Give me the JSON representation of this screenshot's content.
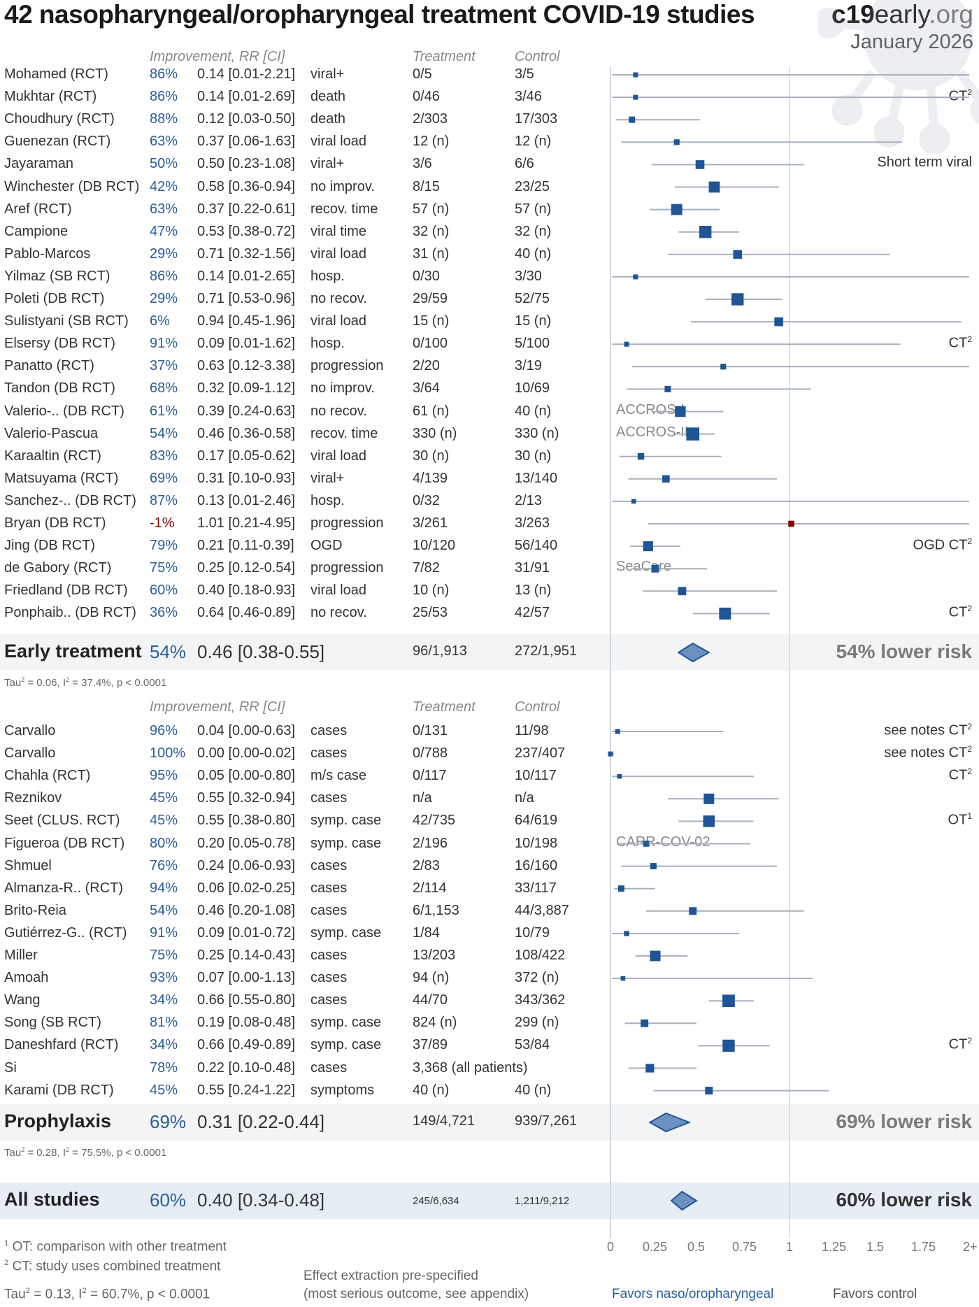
{
  "header": {
    "title": "42 nasopharyngeal/oropharyngeal treatment COVID-19 studies",
    "brand_bold": "c19",
    "brand_mid": "early",
    "brand_tld": ".org",
    "date": "January 2026"
  },
  "columns": {
    "improvement": "Improvement, RR [CI]",
    "treatment": "Treatment",
    "control": "Control"
  },
  "colors": {
    "accent": "#2a5d9a",
    "negative": "#8b0000",
    "square": "#1f5596",
    "diamond_fill": "#6a91c0",
    "ci_line": "#a8b0bb"
  },
  "chart_data": {
    "type": "forest",
    "title": "42 nasopharyngeal/oropharyngeal treatment COVID-19 studies",
    "xlabel_left": "Favors naso/oropharyngeal",
    "xlabel_right": "Favors control",
    "x_ticks": [
      "0",
      "0.25",
      "0.5",
      "0.75",
      "1",
      "1.25",
      "1.5",
      "1.75",
      "2+"
    ],
    "xlim": [
      0,
      2
    ],
    "reference_line": 1,
    "groups": [
      {
        "name": "Early treatment",
        "studies": [
          {
            "name": "Mohamed (RCT)",
            "improvement": "86%",
            "rr": 0.14,
            "lo": 0.01,
            "hi": 2.21,
            "rr_text": "0.14 [0.01-2.21]",
            "outcome": "viral+",
            "treatment": "0/5",
            "control": "3/5",
            "note": "",
            "trial": "",
            "weight": 1
          },
          {
            "name": "Mukhtar (RCT)",
            "improvement": "86%",
            "rr": 0.14,
            "lo": 0.01,
            "hi": 2.69,
            "rr_text": "0.14 [0.01-2.69]",
            "outcome": "death",
            "treatment": "0/46",
            "control": "3/46",
            "note": "CT",
            "note_sup": "2",
            "trial": "",
            "weight": 1
          },
          {
            "name": "Choudhury (RCT)",
            "improvement": "88%",
            "rr": 0.12,
            "lo": 0.03,
            "hi": 0.5,
            "rr_text": "0.12 [0.03-0.50]",
            "outcome": "death",
            "treatment": "2/303",
            "control": "17/303",
            "note": "",
            "trial": "",
            "weight": 1.5
          },
          {
            "name": "Guenezan (RCT)",
            "improvement": "63%",
            "rr": 0.37,
            "lo": 0.06,
            "hi": 1.63,
            "rr_text": "0.37 [0.06-1.63]",
            "outcome": "viral load",
            "treatment": "12 (n)",
            "control": "12 (n)",
            "note": "",
            "trial": "",
            "weight": 1.3
          },
          {
            "name": "Jayaraman",
            "improvement": "50%",
            "rr": 0.5,
            "lo": 0.23,
            "hi": 1.08,
            "rr_text": "0.50 [0.23-1.08]",
            "outcome": "viral+",
            "treatment": "3/6",
            "control": "6/6",
            "note": "Short term viral",
            "trial": "",
            "weight": 2.4
          },
          {
            "name": "Winchester (DB RCT)",
            "improvement": "42%",
            "rr": 0.58,
            "lo": 0.36,
            "hi": 0.94,
            "rr_text": "0.58 [0.36-0.94]",
            "outcome": "no improv.",
            "treatment": "8/15",
            "control": "23/25",
            "note": "",
            "trial": "",
            "weight": 3.2
          },
          {
            "name": "Aref (RCT)",
            "improvement": "63%",
            "rr": 0.37,
            "lo": 0.22,
            "hi": 0.61,
            "rr_text": "0.37 [0.22-0.61]",
            "outcome": "recov. time",
            "treatment": "57 (n)",
            "control": "57 (n)",
            "note": "",
            "trial": "",
            "weight": 3.2
          },
          {
            "name": "Campione",
            "improvement": "47%",
            "rr": 0.53,
            "lo": 0.38,
            "hi": 0.72,
            "rr_text": "0.53 [0.38-0.72]",
            "outcome": "viral time",
            "treatment": "32 (n)",
            "control": "32 (n)",
            "note": "",
            "trial": "",
            "weight": 3.6
          },
          {
            "name": "Pablo-Marcos",
            "improvement": "29%",
            "rr": 0.71,
            "lo": 0.32,
            "hi": 1.56,
            "rr_text": "0.71 [0.32-1.56]",
            "outcome": "viral load",
            "treatment": "31 (n)",
            "control": "40 (n)",
            "note": "",
            "trial": "",
            "weight": 2.4
          },
          {
            "name": "Yilmaz (SB RCT)",
            "improvement": "86%",
            "rr": 0.14,
            "lo": 0.01,
            "hi": 2.65,
            "rr_text": "0.14 [0.01-2.65]",
            "outcome": "hosp.",
            "treatment": "0/30",
            "control": "3/30",
            "note": "",
            "trial": "",
            "weight": 1
          },
          {
            "name": "Poleti (DB RCT)",
            "improvement": "29%",
            "rr": 0.71,
            "lo": 0.53,
            "hi": 0.96,
            "rr_text": "0.71 [0.53-0.96]",
            "outcome": "no recov.",
            "treatment": "29/59",
            "control": "52/75",
            "note": "",
            "trial": "",
            "weight": 3.6
          },
          {
            "name": "Sulistyani (SB RCT)",
            "improvement": "6%",
            "rr": 0.94,
            "lo": 0.45,
            "hi": 1.96,
            "rr_text": "0.94 [0.45-1.96]",
            "outcome": "viral load",
            "treatment": "15 (n)",
            "control": "15 (n)",
            "note": "",
            "trial": "",
            "weight": 2.4
          },
          {
            "name": "Elsersy (DB RCT)",
            "improvement": "91%",
            "rr": 0.09,
            "lo": 0.01,
            "hi": 1.62,
            "rr_text": "0.09 [0.01-1.62]",
            "outcome": "hosp.",
            "treatment": "0/100",
            "control": "5/100",
            "note": "CT",
            "note_sup": "2",
            "trial": "",
            "weight": 1
          },
          {
            "name": "Panatto (RCT)",
            "improvement": "37%",
            "rr": 0.63,
            "lo": 0.12,
            "hi": 3.38,
            "rr_text": "0.63 [0.12-3.38]",
            "outcome": "progression",
            "treatment": "2/20",
            "control": "3/19",
            "note": "",
            "trial": "",
            "weight": 1.3
          },
          {
            "name": "Tandon (DB RCT)",
            "improvement": "68%",
            "rr": 0.32,
            "lo": 0.09,
            "hi": 1.12,
            "rr_text": "0.32 [0.09-1.12]",
            "outcome": "no improv.",
            "treatment": "3/64",
            "control": "10/69",
            "note": "",
            "trial": "",
            "weight": 1.5
          },
          {
            "name": "Valerio-.. (DB RCT)",
            "improvement": "61%",
            "rr": 0.39,
            "lo": 0.24,
            "hi": 0.63,
            "rr_text": "0.39 [0.24-0.63]",
            "outcome": "no recov.",
            "treatment": "61 (n)",
            "control": "40 (n)",
            "note": "",
            "trial": "ACCROS-I",
            "weight": 3.1
          },
          {
            "name": "Valerio-Pascua",
            "improvement": "54%",
            "rr": 0.46,
            "lo": 0.36,
            "hi": 0.58,
            "rr_text": "0.46 [0.36-0.58]",
            "outcome": "recov. time",
            "treatment": "330 (n)",
            "control": "330 (n)",
            "note": "",
            "trial": "ACCROS-II",
            "weight": 3.9
          },
          {
            "name": "Karaaltin (RCT)",
            "improvement": "83%",
            "rr": 0.17,
            "lo": 0.05,
            "hi": 0.62,
            "rr_text": "0.17 [0.05-0.62]",
            "outcome": "viral load",
            "treatment": "30 (n)",
            "control": "30 (n)",
            "note": "",
            "trial": "",
            "weight": 1.6
          },
          {
            "name": "Matsuyama (RCT)",
            "improvement": "69%",
            "rr": 0.31,
            "lo": 0.1,
            "hi": 0.93,
            "rr_text": "0.31 [0.10-0.93]",
            "outcome": "viral+",
            "treatment": "4/139",
            "control": "13/140",
            "note": "",
            "trial": "",
            "weight": 1.9
          },
          {
            "name": "Sanchez-.. (DB RCT)",
            "improvement": "87%",
            "rr": 0.13,
            "lo": 0.01,
            "hi": 2.46,
            "rr_text": "0.13 [0.01-2.46]",
            "outcome": "hosp.",
            "treatment": "0/32",
            "control": "2/13",
            "note": "",
            "trial": "",
            "weight": 0.9
          },
          {
            "name": "Bryan (DB RCT)",
            "improvement": "-1%",
            "rr": 1.01,
            "lo": 0.21,
            "hi": 4.95,
            "rr_text": "1.01 [0.21-4.95]",
            "outcome": "progression",
            "treatment": "3/261",
            "control": "3/263",
            "note": "",
            "trial": "",
            "weight": 1.4,
            "negative": true
          },
          {
            "name": "Jing (DB RCT)",
            "improvement": "79%",
            "rr": 0.21,
            "lo": 0.11,
            "hi": 0.39,
            "rr_text": "0.21 [0.11-0.39]",
            "outcome": "OGD",
            "treatment": "10/120",
            "control": "56/140",
            "note": "OGD CT",
            "note_sup": "2",
            "trial": "",
            "weight": 2.8
          },
          {
            "name": "de Gabory (RCT)",
            "improvement": "75%",
            "rr": 0.25,
            "lo": 0.12,
            "hi": 0.54,
            "rr_text": "0.25 [0.12-0.54]",
            "outcome": "progression",
            "treatment": "7/82",
            "control": "31/91",
            "note": "",
            "trial": "SeaCare",
            "weight": 2.0
          },
          {
            "name": "Friedland (DB RCT)",
            "improvement": "60%",
            "rr": 0.4,
            "lo": 0.18,
            "hi": 0.93,
            "rr_text": "0.40 [0.18-0.93]",
            "outcome": "viral load",
            "treatment": "10 (n)",
            "control": "13 (n)",
            "note": "",
            "trial": "",
            "weight": 2.2
          },
          {
            "name": "Ponphaib.. (DB RCT)",
            "improvement": "36%",
            "rr": 0.64,
            "lo": 0.46,
            "hi": 0.89,
            "rr_text": "0.64 [0.46-0.89]",
            "outcome": "no recov.",
            "treatment": "25/53",
            "control": "42/57",
            "note": "CT",
            "note_sup": "2",
            "trial": "",
            "weight": 3.5
          }
        ],
        "summary": {
          "label": "Early treatment",
          "improvement": "54%",
          "rr": 0.46,
          "lo": 0.38,
          "hi": 0.55,
          "rr_text": "0.46 [0.38-0.55]",
          "treatment": "96/1,913",
          "control": "272/1,951",
          "risk_text": "54% lower risk"
        },
        "heterogeneity": {
          "tau_prefix": "Tau",
          "tau_rest": " = 0.06, I",
          "i_rest": " = 37.4%, p < 0.0001"
        }
      },
      {
        "name": "Prophylaxis",
        "studies": [
          {
            "name": "Carvallo",
            "improvement": "96%",
            "rr": 0.04,
            "lo": 0.0,
            "hi": 0.63,
            "rr_text": "0.04 [0.00-0.63]",
            "outcome": "cases",
            "treatment": "0/131",
            "control": "11/98",
            "note": "see notes CT",
            "note_sup": "2",
            "trial": "",
            "weight": 1
          },
          {
            "name": "Carvallo",
            "improvement": "100%",
            "rr": 0.0,
            "lo": 0.0,
            "hi": 0.02,
            "rr_text": "0.00 [0.00-0.02]",
            "outcome": "cases",
            "treatment": "0/788",
            "control": "237/407",
            "note": "see notes CT",
            "note_sup": "2",
            "trial": "",
            "weight": 1
          },
          {
            "name": "Chahla (RCT)",
            "improvement": "95%",
            "rr": 0.05,
            "lo": 0.0,
            "hi": 0.8,
            "rr_text": "0.05 [0.00-0.80]",
            "outcome": "m/s case",
            "treatment": "0/117",
            "control": "10/117",
            "note": "CT",
            "note_sup": "2",
            "trial": "",
            "weight": 0.9
          },
          {
            "name": "Reznikov",
            "improvement": "45%",
            "rr": 0.55,
            "lo": 0.32,
            "hi": 0.94,
            "rr_text": "0.55 [0.32-0.94]",
            "outcome": "cases",
            "treatment": "n/a",
            "control": "n/a",
            "note": "",
            "trial": "",
            "weight": 3.0
          },
          {
            "name": "Seet (CLUS. RCT)",
            "improvement": "45%",
            "rr": 0.55,
            "lo": 0.38,
            "hi": 0.8,
            "rr_text": "0.55 [0.38-0.80]",
            "outcome": "symp. case",
            "treatment": "42/735",
            "control": "64/619",
            "note": "OT",
            "note_sup": "1",
            "trial": "",
            "weight": 3.4
          },
          {
            "name": "Figueroa (DB RCT)",
            "improvement": "80%",
            "rr": 0.2,
            "lo": 0.05,
            "hi": 0.78,
            "rr_text": "0.20 [0.05-0.78]",
            "outcome": "symp. case",
            "treatment": "2/196",
            "control": "10/198",
            "note": "",
            "trial": "CARR-COV-02",
            "weight": 1.4
          },
          {
            "name": "Shmuel",
            "improvement": "76%",
            "rr": 0.24,
            "lo": 0.06,
            "hi": 0.93,
            "rr_text": "0.24 [0.06-0.93]",
            "outcome": "cases",
            "treatment": "2/83",
            "control": "16/160",
            "note": "",
            "trial": "",
            "weight": 1.5
          },
          {
            "name": "Almanza-R.. (RCT)",
            "improvement": "94%",
            "rr": 0.06,
            "lo": 0.02,
            "hi": 0.25,
            "rr_text": "0.06 [0.02-0.25]",
            "outcome": "cases",
            "treatment": "2/114",
            "control": "33/117",
            "note": "",
            "trial": "",
            "weight": 1.5
          },
          {
            "name": "Brito-Reia",
            "improvement": "54%",
            "rr": 0.46,
            "lo": 0.2,
            "hi": 1.08,
            "rr_text": "0.46 [0.20-1.08]",
            "outcome": "cases",
            "treatment": "6/1,153",
            "control": "44/3,887",
            "note": "",
            "trial": "",
            "weight": 2.0
          },
          {
            "name": "Gutiérrez-G.. (RCT)",
            "improvement": "91%",
            "rr": 0.09,
            "lo": 0.01,
            "hi": 0.72,
            "rr_text": "0.09 [0.01-0.72]",
            "outcome": "symp. case",
            "treatment": "1/84",
            "control": "10/79",
            "note": "",
            "trial": "",
            "weight": 1.1
          },
          {
            "name": "Miller",
            "improvement": "75%",
            "rr": 0.25,
            "lo": 0.14,
            "hi": 0.43,
            "rr_text": "0.25 [0.14-0.43]",
            "outcome": "cases",
            "treatment": "13/203",
            "control": "108/422",
            "note": "",
            "trial": "",
            "weight": 3.0
          },
          {
            "name": "Amoah",
            "improvement": "93%",
            "rr": 0.07,
            "lo": 0.0,
            "hi": 1.13,
            "rr_text": "0.07 [0.00-1.13]",
            "outcome": "cases",
            "treatment": "94 (n)",
            "control": "372 (n)",
            "note": "",
            "trial": "",
            "weight": 0.9
          },
          {
            "name": "Wang",
            "improvement": "34%",
            "rr": 0.66,
            "lo": 0.55,
            "hi": 0.8,
            "rr_text": "0.66 [0.55-0.80]",
            "outcome": "cases",
            "treatment": "44/70",
            "control": "343/362",
            "note": "",
            "trial": "",
            "weight": 3.7
          },
          {
            "name": "Song (SB RCT)",
            "improvement": "81%",
            "rr": 0.19,
            "lo": 0.08,
            "hi": 0.48,
            "rr_text": "0.19 [0.08-0.48]",
            "outcome": "symp. case",
            "treatment": "824 (n)",
            "control": "299 (n)",
            "note": "",
            "trial": "",
            "weight": 2.0
          },
          {
            "name": "Daneshfard (RCT)",
            "improvement": "34%",
            "rr": 0.66,
            "lo": 0.49,
            "hi": 0.89,
            "rr_text": "0.66 [0.49-0.89]",
            "outcome": "symp. case",
            "treatment": "37/89",
            "control": "53/84",
            "note": "CT",
            "note_sup": "2",
            "trial": "",
            "weight": 3.6
          },
          {
            "name": "Si",
            "improvement": "78%",
            "rr": 0.22,
            "lo": 0.1,
            "hi": 0.48,
            "rr_text": "0.22 [0.10-0.48]",
            "outcome": "cases",
            "treatment": "3,368 (all patients)",
            "control": "",
            "note": "",
            "trial": "",
            "weight": 2.3
          },
          {
            "name": "Karami (DB RCT)",
            "improvement": "45%",
            "rr": 0.55,
            "lo": 0.24,
            "hi": 1.22,
            "rr_text": "0.55 [0.24-1.22]",
            "outcome": "symptoms",
            "treatment": "40 (n)",
            "control": "40 (n)",
            "note": "",
            "trial": "",
            "weight": 2.0
          }
        ],
        "summary": {
          "label": "Prophylaxis",
          "improvement": "69%",
          "rr": 0.31,
          "lo": 0.22,
          "hi": 0.44,
          "rr_text": "0.31 [0.22-0.44]",
          "treatment": "149/4,721",
          "control": "939/7,261",
          "risk_text": "69% lower risk"
        },
        "heterogeneity": {
          "tau_prefix": "Tau",
          "tau_rest": " = 0.28, I",
          "i_rest": " = 75.5%, p < 0.0001"
        }
      }
    ],
    "overall": {
      "label": "All studies",
      "improvement": "60%",
      "rr": 0.4,
      "lo": 0.34,
      "hi": 0.48,
      "rr_text": "0.40 [0.34-0.48]",
      "treatment": "245/6,634",
      "control": "1,211/9,212",
      "risk_text": "60% lower risk"
    },
    "overall_heterogeneity": {
      "tau_prefix": "Tau",
      "tau_rest": " = 0.13, I",
      "i_rest": " = 60.7%, p < 0.0001"
    }
  },
  "footnotes": {
    "fn1_num": "1",
    "fn1_text": " OT: comparison with other treatment",
    "fn2_num": "2",
    "fn2_text": " CT: study uses combined treatment",
    "extraction_line1": "Effect extraction pre-specified",
    "extraction_line2": "(most serious outcome, see appendix)"
  }
}
